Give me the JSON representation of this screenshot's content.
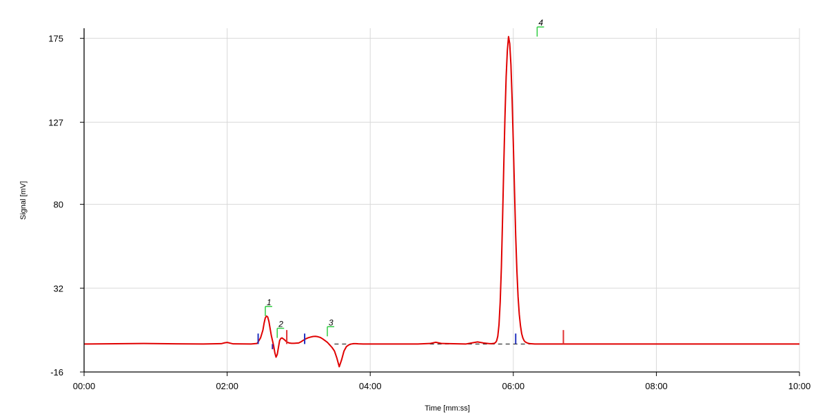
{
  "chart_data": {
    "type": "line",
    "title": "",
    "xlabel": "Time [mm:ss]",
    "ylabel": "Signal [mV]",
    "xlim": [
      0,
      600
    ],
    "ylim": [
      -16,
      180
    ],
    "x_ticks": [
      {
        "value": 0,
        "label": "00:00"
      },
      {
        "value": 120,
        "label": "02:00"
      },
      {
        "value": 240,
        "label": "04:00"
      },
      {
        "value": 360,
        "label": "06:00"
      },
      {
        "value": 480,
        "label": "08:00"
      },
      {
        "value": 600,
        "label": "10:00"
      }
    ],
    "y_ticks": [
      {
        "value": 175,
        "label": "175"
      },
      {
        "value": 127,
        "label": "127"
      },
      {
        "value": 80,
        "label": "80"
      },
      {
        "value": 32,
        "label": "32"
      },
      {
        "value": -16,
        "label": "-16"
      }
    ],
    "grid": true,
    "color": "#e00000",
    "series": [
      {
        "x": [
          0,
          50,
          100,
          115,
          118,
          120,
          122,
          125,
          140,
          145,
          146,
          148,
          150,
          151,
          152,
          153,
          154,
          155,
          156,
          157,
          158,
          159,
          160,
          161,
          162,
          163,
          164,
          165,
          166,
          167,
          168,
          169,
          170,
          172,
          174,
          176,
          178,
          180,
          182,
          184,
          186,
          188,
          190,
          192,
          194,
          196,
          198,
          200,
          202,
          204,
          206,
          208,
          210,
          212,
          214,
          216,
          218,
          220,
          222,
          224,
          226,
          228,
          230,
          234,
          238,
          260,
          280,
          290,
          295,
          300,
          320,
          325,
          330,
          335,
          340,
          342,
          344,
          345,
          346,
          347,
          348,
          349,
          350,
          351,
          352,
          353,
          354,
          355,
          356,
          357,
          358,
          359,
          360,
          361,
          362,
          363,
          364,
          365,
          366,
          367,
          368,
          369,
          370,
          372,
          374,
          376,
          378,
          380,
          382,
          384,
          386,
          388,
          390,
          395,
          400,
          450,
          500,
          550,
          600
        ],
        "y": [
          0,
          0.3,
          0,
          0.2,
          0.7,
          0.9,
          0.6,
          0.1,
          0,
          0.3,
          1.2,
          3.5,
          8,
          12,
          15,
          16,
          15.5,
          13,
          9,
          5,
          2,
          -1,
          -5,
          -7.5,
          -6,
          -2,
          2,
          3.2,
          3.5,
          3,
          2.5,
          1.8,
          1.2,
          0.6,
          0.4,
          0.4,
          0.5,
          0.6,
          1.3,
          2.2,
          3,
          3.6,
          4,
          4.3,
          4.4,
          4.2,
          3.8,
          3,
          2,
          1,
          -0.5,
          -2,
          -4,
          -8,
          -13,
          -9,
          -4,
          -1.5,
          -0.5,
          0,
          0.2,
          0.2,
          0.1,
          0,
          0,
          0,
          0,
          0.3,
          1,
          0.3,
          0,
          0.6,
          1.2,
          0.6,
          0.2,
          0.2,
          0.4,
          0.8,
          1.8,
          4.5,
          11,
          24,
          44,
          72,
          102,
          130,
          153,
          168,
          176,
          172,
          160,
          140,
          115,
          88,
          62,
          42,
          27,
          17,
          10.5,
          6,
          3.5,
          2,
          1.2,
          0.5,
          0.2,
          0.1,
          0,
          0,
          0,
          0,
          0,
          0,
          0,
          0,
          0,
          0,
          0,
          0,
          0
        ]
      }
    ],
    "baselines": [
      {
        "x": [
          290,
          375
        ],
        "y": [
          0,
          0
        ]
      },
      {
        "x": [
          210,
          233
        ],
        "y": [
          0,
          0
        ]
      }
    ],
    "markers": [
      {
        "x": 146,
        "y": 6,
        "color": "#2030c0"
      },
      {
        "x": 158,
        "y": -3,
        "color": "#4020a0"
      },
      {
        "x": 170,
        "y": 8,
        "color": "#e03030"
      },
      {
        "x": 185,
        "y": 6,
        "color": "#2030c0"
      },
      {
        "x": 362,
        "y": 6,
        "color": "#2030c0"
      },
      {
        "x": 402,
        "y": 8,
        "color": "#e03030"
      }
    ],
    "peaks": [
      {
        "label": "1",
        "x": 152,
        "y": 16
      },
      {
        "label": "2",
        "x": 162,
        "y": 3.5
      },
      {
        "label": "3",
        "x": 204,
        "y": 4.4
      },
      {
        "label": "4",
        "x": 380,
        "y": 176
      }
    ]
  }
}
